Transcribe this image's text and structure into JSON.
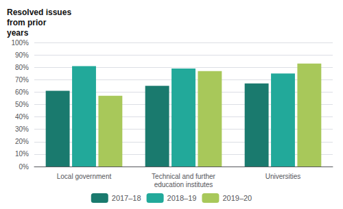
{
  "chart_data": {
    "type": "bar",
    "title": "Resolved issues\nfrom prior\nyears",
    "categories": [
      "Local government",
      "Technical and further\neducation institutes",
      "Universities"
    ],
    "series": [
      {
        "name": "2017–18",
        "color": "#1a7a6e",
        "values": [
          61,
          65,
          67
        ]
      },
      {
        "name": "2018–19",
        "color": "#22a99a",
        "values": [
          81,
          79,
          75
        ]
      },
      {
        "name": "2019–20",
        "color": "#a8c85a",
        "values": [
          57,
          77,
          83
        ]
      }
    ],
    "ylim": [
      0,
      100
    ],
    "yticks": [
      {
        "value": 0,
        "label": "0%"
      },
      {
        "value": 10,
        "label": "10%"
      },
      {
        "value": 20,
        "label": "20%"
      },
      {
        "value": 30,
        "label": "30%"
      },
      {
        "value": 40,
        "label": "40%"
      },
      {
        "value": 50,
        "label": "50%"
      },
      {
        "value": 60,
        "label": "60%"
      },
      {
        "value": 70,
        "label": "70%"
      },
      {
        "value": 80,
        "label": "80%"
      },
      {
        "value": 90,
        "label": "90%"
      },
      {
        "value": 100,
        "label": "100%"
      }
    ],
    "grid": true,
    "legend": "bottom"
  }
}
